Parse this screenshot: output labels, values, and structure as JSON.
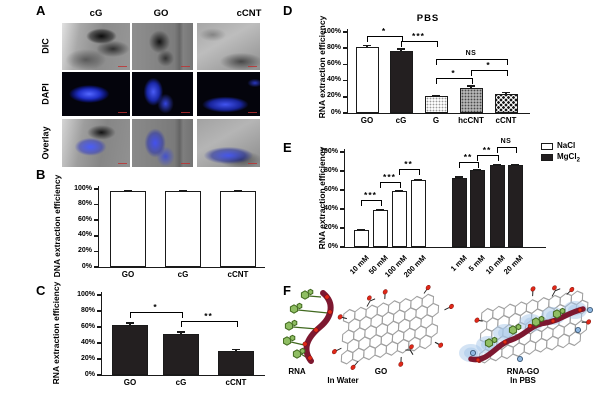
{
  "figure": {
    "panels": {
      "A": {
        "letter": "A",
        "columns": [
          "cG",
          "GO",
          "cCNT"
        ],
        "rows": [
          "DIC",
          "DAPI",
          "Overlay"
        ]
      },
      "B": {
        "letter": "B"
      },
      "C": {
        "letter": "C"
      },
      "D": {
        "letter": "D"
      },
      "E": {
        "letter": "E"
      },
      "F": {
        "letter": "F",
        "labels": {
          "rna": "RNA",
          "go": "GO",
          "in_water": "In Water",
          "rna_go": "RNA-GO",
          "in_pbs": "In PBS"
        }
      }
    }
  },
  "chart_data": [
    {
      "panel": "B",
      "type": "bar",
      "title": "",
      "ylabel": "DNA extraction efficiency",
      "xlabel": "",
      "ylim": [
        0,
        100
      ],
      "yticks": [
        "0%",
        "20%",
        "40%",
        "60%",
        "80%",
        "100%"
      ],
      "grid": false,
      "categories": [
        "GO",
        "cG",
        "cCNT"
      ],
      "values": [
        97,
        97,
        97
      ],
      "errors": [
        1.5,
        1.5,
        1.5
      ],
      "bar_styles": [
        "white",
        "white",
        "white"
      ],
      "significance": []
    },
    {
      "panel": "C",
      "type": "bar",
      "title": "",
      "ylabel": "RNA extraction efficiency",
      "xlabel": "",
      "ylim": [
        0,
        100
      ],
      "yticks": [
        "0%",
        "20%",
        "40%",
        "60%",
        "80%",
        "100%"
      ],
      "grid": false,
      "categories": [
        "GO",
        "cG",
        "cCNT"
      ],
      "values": [
        62,
        51,
        30
      ],
      "errors": [
        4,
        4,
        3
      ],
      "bar_styles": [
        "black",
        "black",
        "black"
      ],
      "significance": [
        {
          "from": 0,
          "to": 1,
          "label": "*"
        },
        {
          "from": 1,
          "to": 2,
          "label": "**"
        }
      ]
    },
    {
      "panel": "D",
      "type": "bar",
      "title": "PBS",
      "ylabel": "RNA extraction efficiency",
      "xlabel": "",
      "ylim": [
        0,
        100
      ],
      "yticks": [
        "0%",
        "20%",
        "40%",
        "60%",
        "80%",
        "100%"
      ],
      "grid": false,
      "categories": [
        "GO",
        "cG",
        "G",
        "hcCNT",
        "cCNT"
      ],
      "values": [
        82,
        77,
        21,
        31,
        23
      ],
      "errors": [
        2.5,
        3,
        1.5,
        3.5,
        3
      ],
      "bar_styles": [
        "white",
        "black",
        "stipple-light",
        "stipple-gray",
        "checker"
      ],
      "significance": [
        {
          "from": 0,
          "to": 1,
          "label": "*"
        },
        {
          "from": 1,
          "to": 2,
          "label": "***"
        },
        {
          "from": 2,
          "to": 4,
          "label": "NS"
        },
        {
          "from": 2,
          "to": 3,
          "label": "*"
        },
        {
          "from": 3,
          "to": 4,
          "label": "*"
        }
      ]
    },
    {
      "panel": "E",
      "type": "bar",
      "title": "",
      "ylabel": "RNA extraction efficiency",
      "xlabel": "",
      "ylim": [
        0,
        100
      ],
      "yticks": [
        "0%",
        "20%",
        "40%",
        "60%",
        "80%",
        "100%"
      ],
      "grid": false,
      "series": [
        {
          "name": "NaCl",
          "style": "white",
          "categories": [
            "10 mM",
            "50 mM",
            "100 mM",
            "200 mM"
          ],
          "values": [
            18,
            39,
            59,
            71
          ],
          "errors": [
            1,
            1,
            1.5,
            1
          ]
        },
        {
          "name": "MgCl2",
          "style": "black",
          "categories": [
            "1 mM",
            "5 mM",
            "10 mM",
            "20 mM"
          ],
          "values": [
            73,
            81,
            86,
            86
          ],
          "errors": [
            1.5,
            1.5,
            1,
            1
          ]
        }
      ],
      "legend": [
        {
          "label": "NaCl",
          "subscript": "",
          "style": "white"
        },
        {
          "label": "MgCl",
          "subscript": "2",
          "style": "black"
        }
      ],
      "legend_position": "upper-right",
      "significance": [
        {
          "from": 0,
          "to": 1,
          "label": "***"
        },
        {
          "from": 1,
          "to": 2,
          "label": "***"
        },
        {
          "from": 2,
          "to": 3,
          "label": "**"
        },
        {
          "from": 4,
          "to": 5,
          "label": "**"
        },
        {
          "from": 5,
          "to": 6,
          "label": "**"
        },
        {
          "from": 6,
          "to": 7,
          "label": "NS"
        }
      ]
    }
  ],
  "colors": {
    "bar_black": "#231f20",
    "axis_black": "#1a1a1a",
    "dapi_blue": "#3646e0",
    "rna_ribbon_red": "#7d1830",
    "base_green": "#8fbe63",
    "base_green_dark": "#41691f",
    "oxygen_red": "#e02818",
    "halo_blue": "#a8c8ea",
    "ion_blue": "#8fb7e0",
    "lattice_gray": "#a0a0a0"
  }
}
